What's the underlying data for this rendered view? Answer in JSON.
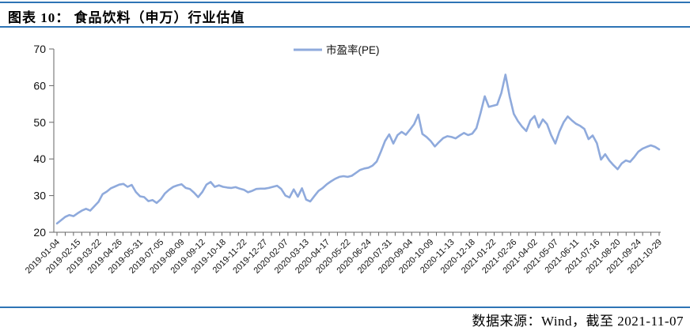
{
  "header": {
    "title": "图表 10： 食品饮料（申万）行业估值"
  },
  "footer": {
    "source": "数据来源：Wind，截至 2021-11-07"
  },
  "colors": {
    "accent_rule": "#2e74b5",
    "series_line": "#8faadc",
    "axis": "#666666",
    "label": "#111111"
  },
  "chart_data": {
    "type": "line",
    "title": "食品饮料（申万）行业估值",
    "legend": [
      "市盈率(PE)"
    ],
    "legend_position": "top-center",
    "grid": false,
    "ylim": [
      20,
      70
    ],
    "yticks": [
      20,
      30,
      40,
      50,
      60,
      70
    ],
    "x_labels": [
      "2019-01-04",
      "2019-02-15",
      "2019-03-22",
      "2019-04-26",
      "2019-05-31",
      "2019-07-05",
      "2019-08-09",
      "2019-09-12",
      "2019-10-18",
      "2019-11-22",
      "2019-12-27",
      "2020-02-07",
      "2020-03-13",
      "2020-04-17",
      "2020-05-22",
      "2020-06-24",
      "2020-07-31",
      "2020-09-04",
      "2020-10-09",
      "2020-11-13",
      "2020-12-18",
      "2021-01-22",
      "2021-02-26",
      "2021-04-02",
      "2021-05-07",
      "2021-06-11",
      "2021-07-16",
      "2021-08-20",
      "2021-09-24",
      "2021-10-29"
    ],
    "label_every_n_points": 5,
    "series": [
      {
        "name": "市盈率(PE)",
        "color": "#8faadc",
        "values": [
          22.4,
          23.3,
          24.2,
          24.7,
          24.4,
          25.2,
          25.9,
          26.4,
          25.9,
          27.1,
          28.3,
          30.4,
          31.1,
          32.0,
          32.5,
          33.0,
          33.2,
          32.4,
          32.9,
          31.0,
          29.8,
          29.6,
          28.5,
          28.8,
          28.0,
          29.0,
          30.6,
          31.6,
          32.4,
          32.8,
          33.1,
          32.1,
          31.8,
          30.8,
          29.6,
          31.0,
          33.0,
          33.7,
          32.4,
          32.8,
          32.4,
          32.2,
          32.1,
          32.3,
          31.9,
          31.6,
          30.9,
          31.3,
          31.8,
          31.9,
          31.9,
          32.1,
          32.4,
          32.7,
          31.8,
          30.0,
          29.5,
          31.7,
          29.7,
          32.0,
          28.9,
          28.4,
          29.9,
          31.3,
          32.1,
          33.1,
          33.9,
          34.6,
          35.1,
          35.3,
          35.1,
          35.4,
          36.2,
          37.0,
          37.4,
          37.6,
          38.2,
          39.3,
          42.0,
          44.9,
          46.7,
          44.2,
          46.5,
          47.4,
          46.6,
          48.0,
          49.5,
          52.1,
          46.8,
          46.0,
          44.9,
          43.4,
          44.6,
          45.7,
          46.2,
          46.0,
          45.6,
          46.4,
          47.1,
          46.5,
          46.9,
          48.4,
          52.5,
          57.1,
          54.2,
          54.5,
          54.8,
          58.0,
          63.0,
          57.0,
          52.3,
          50.3,
          48.8,
          47.6,
          50.5,
          51.7,
          48.6,
          50.8,
          49.5,
          46.5,
          44.2,
          47.5,
          50.0,
          51.6,
          50.5,
          49.6,
          49.0,
          48.2,
          45.4,
          46.4,
          44.3,
          39.8,
          41.3,
          39.6,
          38.3,
          37.2,
          38.8,
          39.6,
          39.2,
          40.5,
          42.0,
          42.8,
          43.3,
          43.7,
          43.3,
          42.6
        ]
      }
    ]
  }
}
